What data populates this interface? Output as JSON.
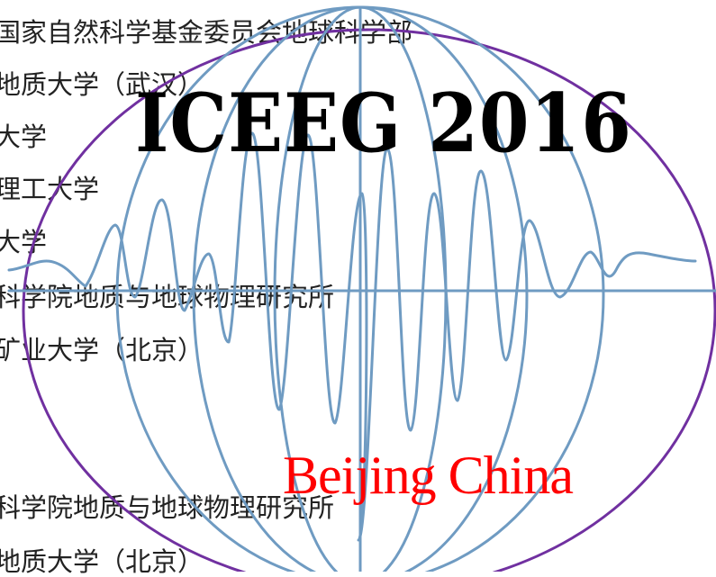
{
  "background_lines": [
    "国家自然科学基金委员会地球科学部",
    "地质大学（武汉）",
    "大学",
    "理工大学",
    "大学",
    "科学院地质与地球物理研究所",
    "矿业大学（北京）",
    "科学院地质与地球物理研究所",
    "地质大学（北京）"
  ],
  "logo": {
    "title": "ICEEG 2016",
    "subtitle": "Beijing China",
    "colors": {
      "ellipse": "#7030a0",
      "globe": "#6f9bc2",
      "title": "#000000",
      "subtitle": "#ff0000"
    },
    "icons": [
      "globe-grid-icon",
      "seismic-wave-icon"
    ]
  }
}
